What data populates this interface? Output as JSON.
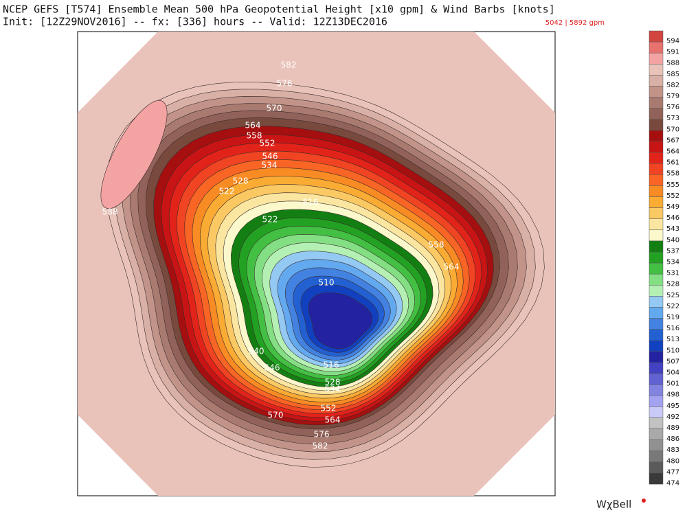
{
  "header": {
    "title": "NCEP GEFS [T574] Ensemble Mean 500 hPa Geopotential Height [x10 gpm] & Wind Barbs [knots]",
    "subtitle": "Init: [12Z29NOV2016] -- fx: [336] hours -- Valid: 12Z13DEC2016",
    "range": "5042 | 5892 gpm"
  },
  "colorbar": {
    "levels": [
      594,
      591,
      588,
      585,
      582,
      579,
      576,
      573,
      570,
      567,
      564,
      561,
      558,
      555,
      552,
      549,
      546,
      543,
      540,
      537,
      534,
      531,
      528,
      525,
      522,
      519,
      516,
      513,
      510,
      507,
      504,
      501,
      498,
      495,
      492,
      489,
      486,
      483,
      480,
      477,
      474
    ],
    "colors": [
      "#d2463f",
      "#e8726e",
      "#f4a3a3",
      "#e9c3ba",
      "#d8b0a6",
      "#c29489",
      "#a97b70",
      "#916259",
      "#784a3e",
      "#a50f0f",
      "#c81414",
      "#e2231a",
      "#f04422",
      "#f86524",
      "#f98b24",
      "#f9ab34",
      "#fac964",
      "#fae6a0",
      "#fbf8cc",
      "#137f13",
      "#22a122",
      "#43c043",
      "#84df84",
      "#b4f0b4",
      "#93c9f2",
      "#63a9f0",
      "#4382e0",
      "#2361d2",
      "#1241c0",
      "#2323a2",
      "#4242c2",
      "#6262d2",
      "#8383e2",
      "#a3a3f1",
      "#cacaf8",
      "#c2c2c2",
      "#a9a9a9",
      "#919191",
      "#797979",
      "#5a5a5a",
      "#3a3a3a"
    ]
  },
  "contour_labels": [
    582,
    576,
    570,
    564,
    558,
    552,
    546,
    534,
    528,
    522,
    522,
    516,
    510,
    588,
    558,
    564,
    540,
    546,
    516,
    534,
    528,
    552,
    564,
    570,
    576,
    582
  ],
  "footer": {
    "logo": "WχBell"
  }
}
